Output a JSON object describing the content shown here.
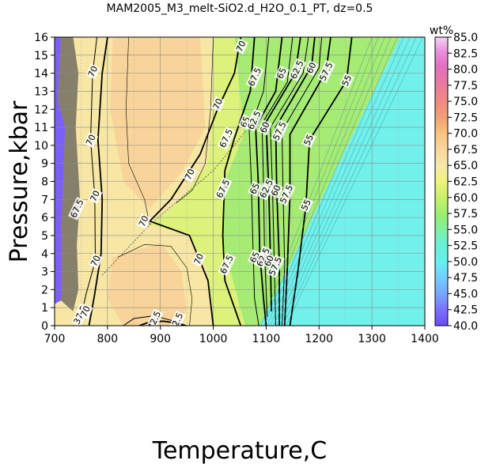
{
  "chart_data": {
    "type": "heatmap",
    "title": "MAM2005_M3_melt-SiO2.d_H2O_0.1_PT, dz=0.5",
    "xlabel": "Temperature,C",
    "ylabel": "Pressure,kbar",
    "xlim": [
      700,
      1400
    ],
    "ylim": [
      0,
      16
    ],
    "xticks": [
      "700",
      "800",
      "900",
      "1000",
      "1100",
      "1200",
      "1300",
      "1400"
    ],
    "yticks": [
      "0",
      "1",
      "2",
      "3",
      "4",
      "5",
      "6",
      "7",
      "8",
      "9",
      "10",
      "11",
      "12",
      "13",
      "14",
      "15",
      "16"
    ],
    "grid": true,
    "colorbar": {
      "unit": "wt%",
      "range": [
        40.0,
        85.0
      ],
      "ticks": [
        "40.0",
        "42.5",
        "45.0",
        "47.5",
        "50.0",
        "52.5",
        "55.0",
        "57.5",
        "60.0",
        "62.5",
        "65.0",
        "67.5",
        "70.0",
        "72.5",
        "75.0",
        "77.5",
        "80.0",
        "82.5",
        "85.0"
      ]
    },
    "contour_labels": [
      {
        "text": "70",
        "x": 1052,
        "y": 15.5
      },
      {
        "text": "67.5",
        "x": 1078,
        "y": 13.8
      },
      {
        "text": "65",
        "x": 1129,
        "y": 14.0
      },
      {
        "text": "62.5",
        "x": 1158,
        "y": 14.2
      },
      {
        "text": "60",
        "x": 1185,
        "y": 14.3
      },
      {
        "text": "57.5",
        "x": 1213,
        "y": 14.1
      },
      {
        "text": "55",
        "x": 1252,
        "y": 13.6
      },
      {
        "text": "70",
        "x": 1008,
        "y": 12.3
      },
      {
        "text": "67.5",
        "x": 1024,
        "y": 10.4
      },
      {
        "text": "65",
        "x": 1060,
        "y": 11.3
      },
      {
        "text": "62.5",
        "x": 1077,
        "y": 11.4
      },
      {
        "text": "60",
        "x": 1097,
        "y": 11.0
      },
      {
        "text": "57.5",
        "x": 1125,
        "y": 10.8
      },
      {
        "text": "55",
        "x": 1180,
        "y": 10.3
      },
      {
        "text": "70",
        "x": 955,
        "y": 8.4
      },
      {
        "text": "67.5",
        "x": 1018,
        "y": 7.6
      },
      {
        "text": "65",
        "x": 1078,
        "y": 7.6
      },
      {
        "text": "62.5",
        "x": 1100,
        "y": 7.6
      },
      {
        "text": "60",
        "x": 1118,
        "y": 7.5
      },
      {
        "text": "57.5",
        "x": 1138,
        "y": 7.3
      },
      {
        "text": "55",
        "x": 1175,
        "y": 6.7
      },
      {
        "text": "70",
        "x": 868,
        "y": 5.8
      },
      {
        "text": "70",
        "x": 768,
        "y": 10.3
      },
      {
        "text": "70",
        "x": 776,
        "y": 7.2
      },
      {
        "text": "70",
        "x": 777,
        "y": 3.6
      },
      {
        "text": "70",
        "x": 972,
        "y": 3.7
      },
      {
        "text": "67.5",
        "x": 1025,
        "y": 3.4
      },
      {
        "text": "65",
        "x": 1078,
        "y": 3.8
      },
      {
        "text": "62.5",
        "x": 1094,
        "y": 3.8
      },
      {
        "text": "60",
        "x": 1105,
        "y": 3.6
      },
      {
        "text": "57.5",
        "x": 1117,
        "y": 3.3
      },
      {
        "text": "70",
        "x": 772,
        "y": 14.1
      },
      {
        "text": "67.5",
        "x": 742,
        "y": 6.5
      },
      {
        "text": "37.5",
        "x": 748,
        "y": 0.6
      },
      {
        "text": "70",
        "x": 758,
        "y": 0.8
      },
      {
        "text": "72.5",
        "x": 888,
        "y": 0.3
      },
      {
        "text": "72.5",
        "x": 930,
        "y": 0.2
      }
    ]
  }
}
